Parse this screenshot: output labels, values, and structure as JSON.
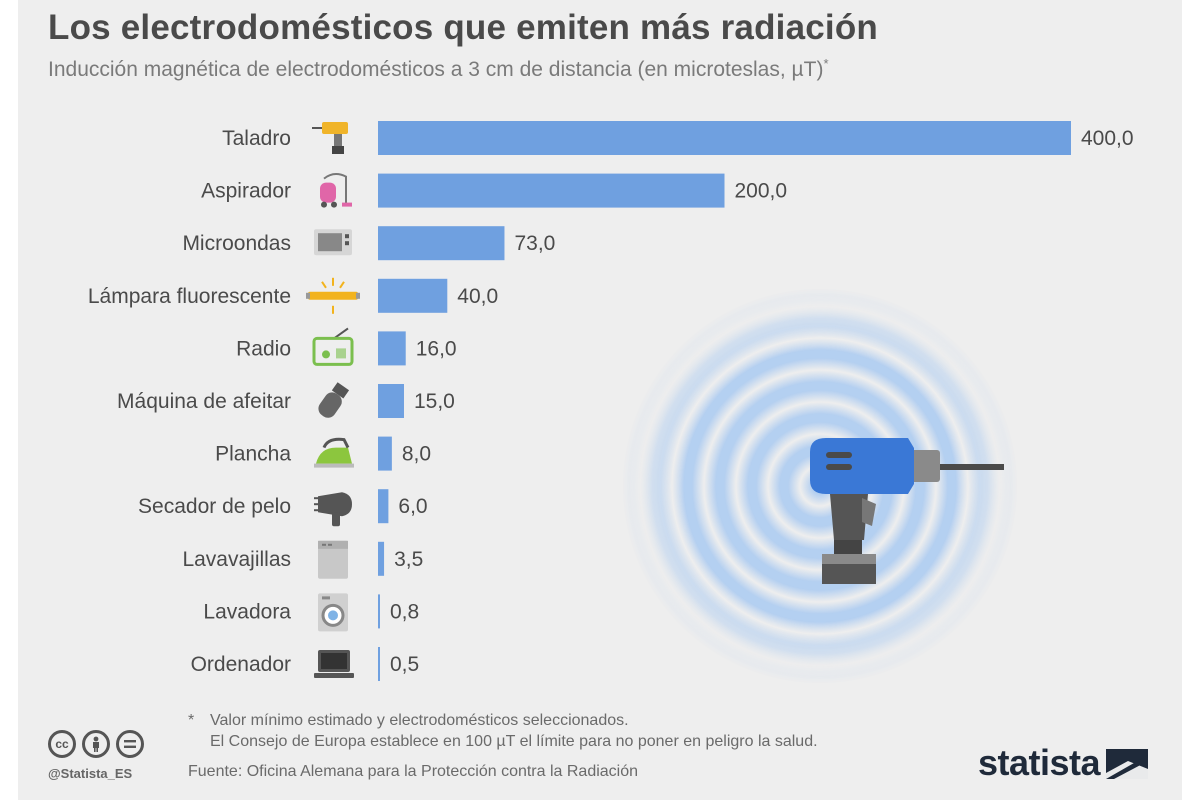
{
  "header": {
    "title": "Los electrodomésticos que emiten más radiación",
    "subtitle": "Inducción magnética de electrodomésticos a 3 cm de distancia (en microteslas, µT)",
    "subtitle_mark": "*"
  },
  "chart_data": {
    "type": "bar",
    "orientation": "horizontal",
    "title": "Los electrodomésticos que emiten más radiación",
    "subtitle": "Inducción magnética de electrodomésticos a 3 cm de distancia (en microteslas, µT)",
    "categories": [
      "Taladro",
      "Aspirador",
      "Microondas",
      "Lámpara fluorescente",
      "Radio",
      "Máquina de afeitar",
      "Plancha",
      "Secador de pelo",
      "Lavavajillas",
      "Lavadora",
      "Ordenador"
    ],
    "values": [
      400.0,
      200.0,
      73.0,
      40.0,
      16.0,
      15.0,
      8.0,
      6.0,
      3.5,
      0.8,
      0.5
    ],
    "value_labels": [
      "400,0",
      "200,0",
      "73,0",
      "40,0",
      "16,0",
      "15,0",
      "8,0",
      "6,0",
      "3,5",
      "0,8",
      "0,5"
    ],
    "icons": [
      "drill-icon",
      "vacuum-icon",
      "microwave-icon",
      "fluorescent-lamp-icon",
      "radio-icon",
      "shaver-icon",
      "iron-icon",
      "hair-dryer-icon",
      "dishwasher-icon",
      "washing-machine-icon",
      "laptop-icon"
    ],
    "xlim": [
      0,
      400
    ],
    "grid": false,
    "legend": "none",
    "bar_color": "#6fa0e0"
  },
  "footer": {
    "note_mark": "*",
    "note_line1": "Valor mínimo estimado y electrodomésticos seleccionados.",
    "note_line2": "El Consejo de Europa establece en 100 µT el límite para no poner en peligro la salud.",
    "source": "Fuente: Oficina Alemana para la Protección contra la Radiación",
    "handle": "@Statista_ES",
    "license_icons": [
      "cc-icon",
      "attribution-icon",
      "no-derivatives-icon"
    ],
    "brand": "statista"
  }
}
